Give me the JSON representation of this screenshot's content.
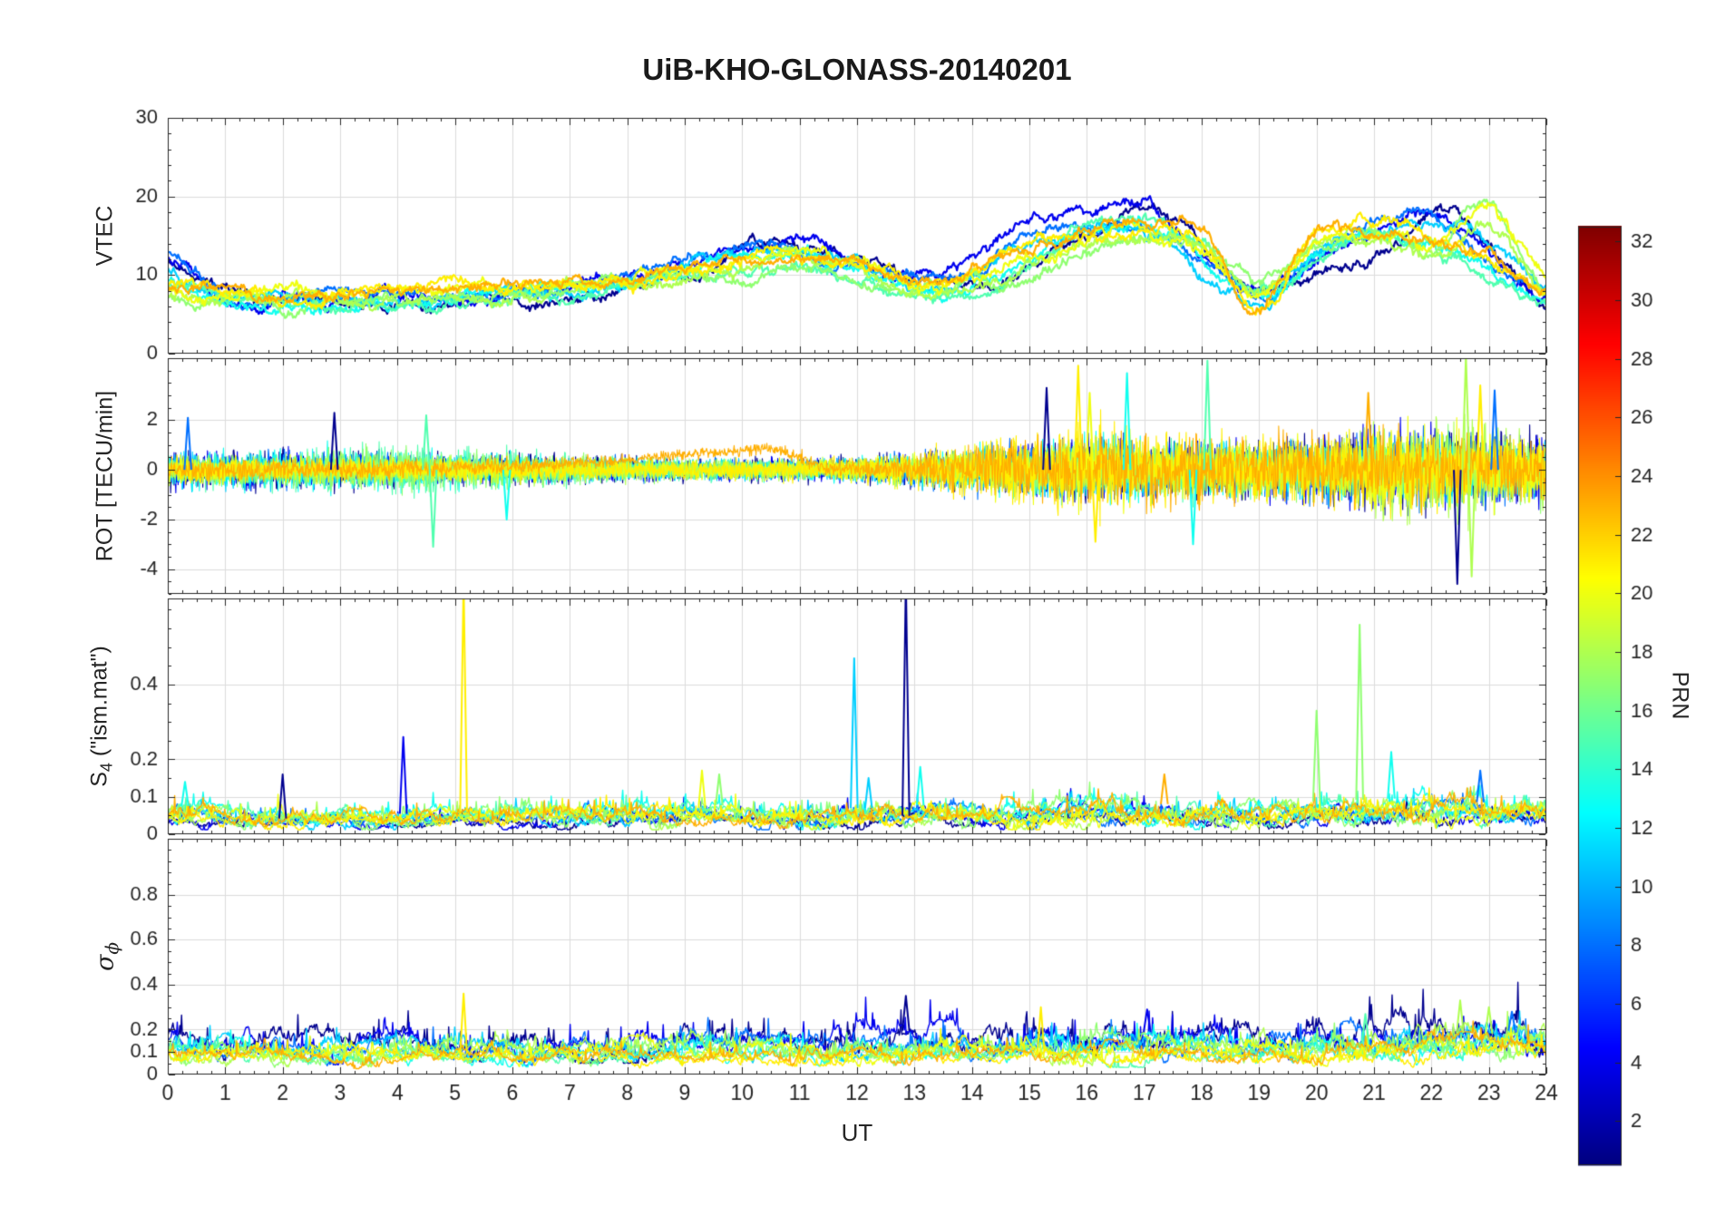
{
  "figure": {
    "background": "#ffffff",
    "ink": "#262626",
    "grid": "#dcdcdc"
  },
  "chart_data": {
    "type": "line",
    "title": "UiB-KHO-GLONASS-20140201",
    "xlabel": "UT",
    "x_range": [
      0,
      24
    ],
    "x_tick_labels": [
      "0",
      "1",
      "2",
      "3",
      "4",
      "5",
      "6",
      "7",
      "8",
      "9",
      "10",
      "11",
      "12",
      "13",
      "14",
      "15",
      "16",
      "17",
      "18",
      "19",
      "20",
      "21",
      "22",
      "23",
      "24"
    ],
    "x_minor_step": 0.25,
    "grid": "on",
    "colorbar": {
      "label": "PRN",
      "colormap": "jet",
      "range": [
        0.5,
        32.5
      ],
      "tick_vals": [
        2,
        4,
        6,
        8,
        10,
        12,
        14,
        16,
        18,
        20,
        22,
        24,
        26,
        28,
        30,
        32
      ],
      "tick_labels": [
        "2",
        "4",
        "6",
        "8",
        "10",
        "12",
        "14",
        "16",
        "18",
        "20",
        "22",
        "24",
        "26",
        "28",
        "30",
        "32"
      ]
    },
    "panels": [
      {
        "id": "vtec",
        "kind": "vtec",
        "ylabel": "VTEC",
        "ylim": [
          0,
          30
        ],
        "ytick_vals": [
          0,
          10,
          20,
          30
        ],
        "ytick_labels": [
          "0",
          "10",
          "20",
          "30"
        ],
        "y_minor_step": 2,
        "line_width": 2.2
      },
      {
        "id": "rot",
        "kind": "rot",
        "ylabel": "ROT [TECU/min]",
        "ylim": [
          -5,
          4.5
        ],
        "ytick_vals": [
          -4,
          -2,
          0,
          2
        ],
        "ytick_labels": [
          "-4",
          "-2",
          "0",
          "2"
        ],
        "y_minor_step": 0.5,
        "line_width": 1.1,
        "amp_t": [
          0,
          2,
          4,
          6,
          8,
          10,
          12,
          14,
          16,
          18,
          20,
          22,
          24
        ],
        "trends": [
          {
            "prn": 23,
            "t": [
              0,
              3,
              4,
              6,
              8,
              9.5,
              10.5,
              11,
              11.5,
              24
            ],
            "v": [
              0,
              0,
              0.05,
              0.15,
              0.4,
              0.7,
              0.9,
              0.5,
              0.05,
              0
            ]
          }
        ],
        "spikes": [
          {
            "prn": 8,
            "t": 0.35,
            "v": 2.1
          },
          {
            "prn": 1,
            "t": 2.9,
            "v": 2.3
          },
          {
            "prn": 15,
            "t": 4.5,
            "v": 2.2
          },
          {
            "prn": 15,
            "t": 4.62,
            "v": -3.1
          },
          {
            "prn": 13,
            "t": 5.9,
            "v": -2.0
          },
          {
            "prn": 1,
            "t": 15.3,
            "v": 3.3
          },
          {
            "prn": 21,
            "t": 15.85,
            "v": 4.2
          },
          {
            "prn": 21,
            "t": 16.15,
            "v": -2.9
          },
          {
            "prn": 20,
            "t": 16.05,
            "v": 3.1
          },
          {
            "prn": 13,
            "t": 16.7,
            "v": 3.9
          },
          {
            "prn": 13,
            "t": 17.85,
            "v": -3.0
          },
          {
            "prn": 15,
            "t": 18.1,
            "v": 4.4
          },
          {
            "prn": 23,
            "t": 20.9,
            "v": 3.1
          },
          {
            "prn": 1,
            "t": 22.45,
            "v": -4.6
          },
          {
            "prn": 18,
            "t": 22.6,
            "v": 4.6
          },
          {
            "prn": 18,
            "t": 22.7,
            "v": -4.3
          },
          {
            "prn": 21,
            "t": 22.85,
            "v": 3.4
          },
          {
            "prn": 8,
            "t": 23.1,
            "v": 3.2
          }
        ]
      },
      {
        "id": "s4",
        "kind": "band",
        "ylabel_main": "S",
        "ylabel_sub": "4",
        "ylabel_suffix": " (\"ism.mat\")",
        "ylim": [
          0,
          0.63
        ],
        "ytick_vals": [
          0,
          0.1,
          0.2,
          0.4
        ],
        "ytick_labels": [
          "0",
          "0.1",
          "0.2",
          "0.4"
        ],
        "y_minor_step": 0.05,
        "line_width": 1.4,
        "scale_key": "s4_scale",
        "base_t": [
          0,
          2,
          4,
          6,
          8,
          10,
          12,
          14,
          16,
          18,
          20,
          22,
          24
        ],
        "base": [
          0.07,
          0.06,
          0.06,
          0.07,
          0.07,
          0.07,
          0.07,
          0.07,
          0.08,
          0.07,
          0.08,
          0.09,
          0.08
        ],
        "spikes": [
          {
            "prn": 13,
            "t": 0.3,
            "v": 0.14
          },
          {
            "prn": 1,
            "t": 2.0,
            "v": 0.16
          },
          {
            "prn": 4,
            "t": 4.1,
            "v": 0.26
          },
          {
            "prn": 21,
            "t": 5.15,
            "v": 0.68
          },
          {
            "prn": 20,
            "t": 9.3,
            "v": 0.17
          },
          {
            "prn": 17,
            "t": 9.6,
            "v": 0.16
          },
          {
            "prn": 11,
            "t": 11.95,
            "v": 0.47
          },
          {
            "prn": 11,
            "t": 12.2,
            "v": 0.15
          },
          {
            "prn": 1,
            "t": 12.85,
            "v": 0.68
          },
          {
            "prn": 13,
            "t": 13.1,
            "v": 0.18
          },
          {
            "prn": 23,
            "t": 17.35,
            "v": 0.16
          },
          {
            "prn": 17,
            "t": 20.0,
            "v": 0.33
          },
          {
            "prn": 17,
            "t": 20.75,
            "v": 0.56
          },
          {
            "prn": 13,
            "t": 21.3,
            "v": 0.22
          },
          {
            "prn": 8,
            "t": 22.85,
            "v": 0.17
          }
        ]
      },
      {
        "id": "sigma",
        "kind": "band",
        "ylabel_main": "σ",
        "ylabel_sub": "ϕ",
        "ylabel_suffix": "",
        "ylim": [
          0,
          1.05
        ],
        "ytick_vals": [
          0,
          0.1,
          0.2,
          0.4,
          0.6,
          0.8
        ],
        "ytick_labels": [
          "0",
          "0.1",
          "0.2",
          "0.4",
          "0.6",
          "0.8"
        ],
        "y_minor_step": 0.05,
        "line_width": 1.4,
        "scale_key": "sigma_scale",
        "base_t": [
          0,
          2,
          4,
          6,
          8,
          10,
          12,
          14,
          16,
          18,
          20,
          22,
          24
        ],
        "base": [
          0.13,
          0.12,
          0.12,
          0.13,
          0.13,
          0.13,
          0.13,
          0.13,
          0.14,
          0.13,
          0.14,
          0.17,
          0.16
        ],
        "spikes": [
          {
            "prn": 21,
            "t": 5.15,
            "v": 0.36
          },
          {
            "prn": 1,
            "t": 12.85,
            "v": 0.35
          },
          {
            "prn": 21,
            "t": 15.2,
            "v": 0.3
          },
          {
            "prn": 4,
            "t": 17.05,
            "v": 0.29
          },
          {
            "prn": 15,
            "t": 20.85,
            "v": 0.27
          },
          {
            "prn": 18,
            "t": 22.5,
            "v": 0.33
          },
          {
            "prn": 18,
            "t": 23.0,
            "v": 0.3
          },
          {
            "prn": 8,
            "t": 23.4,
            "v": 0.28
          }
        ]
      }
    ],
    "series": [
      {
        "prn": 1,
        "vtec": [
          11.5,
          6.5,
          6.2,
          6.5,
          6.8,
          6.8,
          7.2,
          7.8,
          8.8,
          10.2,
          12.5,
          13.8,
          12.5,
          9.2,
          8.6,
          10.5,
          15.5,
          18.5,
          14.5,
          9,
          10,
          13,
          18.5,
          13.5,
          6.2
        ],
        "rot_amp": [
          0.5,
          0.5,
          0.45,
          0.4,
          0.35,
          0.3,
          0.35,
          0.5,
          0.8,
          0.7,
          0.8,
          1.0,
          0.9
        ],
        "s4_scale": 0.7,
        "sigma_scale": 1.5
      },
      {
        "prn": 4,
        "vtec": [
          12.5,
          7,
          6.8,
          6.9,
          7,
          7,
          7.4,
          8.2,
          9.4,
          11,
          13.2,
          14.2,
          12,
          9.5,
          11.5,
          16.5,
          17.5,
          19,
          13.5,
          8,
          12,
          15.5,
          18.5,
          12.5,
          7
        ],
        "rot_amp": [
          0.45,
          0.5,
          0.4,
          0.35,
          0.3,
          0.3,
          0.3,
          0.5,
          0.7,
          0.7,
          0.9,
          1.1,
          0.8
        ],
        "s4_scale": 0.9,
        "sigma_scale": 1.4
      },
      {
        "prn": 8,
        "vtec": [
          13.5,
          7.5,
          7.4,
          7,
          7,
          7.4,
          7.9,
          8.4,
          9.8,
          11.8,
          14,
          13.2,
          11,
          9.2,
          10.2,
          15,
          17,
          16,
          12,
          7.5,
          13,
          16,
          17,
          11.5,
          9
        ],
        "rot_amp": [
          0.4,
          0.45,
          0.4,
          0.3,
          0.3,
          0.25,
          0.3,
          0.6,
          0.7,
          0.6,
          0.8,
          1.0,
          0.7
        ],
        "s4_scale": 1.0,
        "sigma_scale": 1.2
      },
      {
        "prn": 11,
        "vtec": [
          10.5,
          7.2,
          7,
          6.6,
          6.2,
          6.9,
          7.4,
          7.9,
          8.9,
          10.8,
          12.8,
          13.8,
          11.8,
          8.2,
          9.2,
          14,
          16,
          15,
          11,
          7.2,
          14,
          15.5,
          16,
          13.5,
          8
        ],
        "rot_amp": [
          0.5,
          0.4,
          0.35,
          0.3,
          0.25,
          0.25,
          0.3,
          0.5,
          0.8,
          0.6,
          0.7,
          0.9,
          0.6
        ],
        "s4_scale": 1.0,
        "sigma_scale": 1.1
      },
      {
        "prn": 13,
        "vtec": [
          9.5,
          7,
          6.4,
          5.9,
          5.8,
          6.4,
          6.9,
          7.8,
          8.8,
          9.8,
          11.8,
          12.8,
          10.8,
          8,
          8.2,
          12,
          15,
          16.5,
          12.5,
          7,
          13,
          15.5,
          14,
          10.5,
          7
        ],
        "rot_amp": [
          0.45,
          0.5,
          0.6,
          0.4,
          0.3,
          0.25,
          0.3,
          0.5,
          0.9,
          0.7,
          0.6,
          0.8,
          0.5
        ],
        "s4_scale": 1.1,
        "sigma_scale": 1.0
      },
      {
        "prn": 15,
        "vtec": [
          8.5,
          7,
          6.5,
          6.3,
          5.9,
          6.4,
          6.9,
          7.4,
          8.4,
          9.8,
          10.8,
          11.8,
          9.8,
          7.6,
          8,
          11,
          15.5,
          16.5,
          13.5,
          8,
          12,
          14.5,
          13,
          9.5,
          7
        ],
        "rot_amp": [
          0.4,
          0.5,
          0.7,
          0.5,
          0.3,
          0.25,
          0.25,
          0.4,
          0.7,
          0.8,
          0.6,
          0.7,
          0.5
        ],
        "s4_scale": 1.0,
        "sigma_scale": 0.9
      },
      {
        "prn": 17,
        "vtec": [
          7.2,
          6.6,
          6.1,
          6.4,
          6.9,
          6.9,
          7.4,
          7.9,
          8.9,
          9.4,
          9.9,
          10.9,
          9.9,
          8,
          8.9,
          9.9,
          12.5,
          14.5,
          15.5,
          9,
          14.5,
          15.5,
          13,
          19.5,
          8
        ],
        "rot_amp": [
          0.35,
          0.4,
          0.6,
          0.4,
          0.3,
          0.25,
          0.25,
          0.4,
          0.6,
          0.7,
          0.7,
          0.9,
          0.8
        ],
        "s4_scale": 1.1,
        "sigma_scale": 1.0
      },
      {
        "prn": 18,
        "vtec": [
          7.6,
          7,
          6.6,
          6.9,
          7,
          7.4,
          7.9,
          7.9,
          8.9,
          9.9,
          10.9,
          11.9,
          10.9,
          8.4,
          9.4,
          10.9,
          13.5,
          15.5,
          14.5,
          8,
          13.5,
          14.5,
          12,
          16,
          7.2
        ],
        "rot_amp": [
          0.3,
          0.35,
          0.4,
          0.35,
          0.3,
          0.25,
          0.3,
          0.45,
          0.6,
          0.6,
          0.8,
          1.3,
          0.9
        ],
        "s4_scale": 1.0,
        "sigma_scale": 1.1
      },
      {
        "prn": 20,
        "vtec": [
          8,
          7.4,
          7,
          7.4,
          7.9,
          8.4,
          7.9,
          8.4,
          8.9,
          9.9,
          11.9,
          12.9,
          11.9,
          9,
          9.9,
          12.9,
          14.5,
          15.5,
          13.5,
          7.2,
          14.5,
          15.5,
          14,
          19,
          9
        ],
        "rot_amp": [
          0.3,
          0.3,
          0.35,
          0.3,
          0.25,
          0.25,
          0.3,
          0.6,
          1.0,
          0.7,
          0.8,
          1.2,
          0.8
        ],
        "s4_scale": 1.0,
        "sigma_scale": 1.0
      },
      {
        "prn": 21,
        "vtec": [
          9,
          7.9,
          7.4,
          7.9,
          7.9,
          8.9,
          8.4,
          8.9,
          9.4,
          10.4,
          11.9,
          12.9,
          11.9,
          9.4,
          10.9,
          13.9,
          15.5,
          16.5,
          14.5,
          6.2,
          15.5,
          16.5,
          14.5,
          12.5,
          8
        ],
        "rot_amp": [
          0.35,
          0.3,
          0.3,
          0.3,
          0.25,
          0.25,
          0.3,
          0.7,
          1.2,
          0.8,
          0.9,
          1.0,
          0.7
        ],
        "s4_scale": 0.9,
        "sigma_scale": 0.75
      },
      {
        "prn": 23,
        "vtec": [
          8.6,
          7.9,
          7.4,
          7.9,
          8.4,
          8.9,
          8.9,
          9.4,
          9.9,
          10.9,
          12.4,
          12.9,
          11.9,
          9.9,
          10.9,
          13.9,
          15.5,
          16.5,
          15.5,
          6,
          15.5,
          15,
          13.5,
          11.5,
          8
        ],
        "rot_amp": [
          0.3,
          0.3,
          0.25,
          0.2,
          0.15,
          0.15,
          0.2,
          0.6,
          0.9,
          0.9,
          1.0,
          0.9,
          0.7
        ],
        "s4_scale": 1.1,
        "sigma_scale": 0.85
      }
    ]
  }
}
